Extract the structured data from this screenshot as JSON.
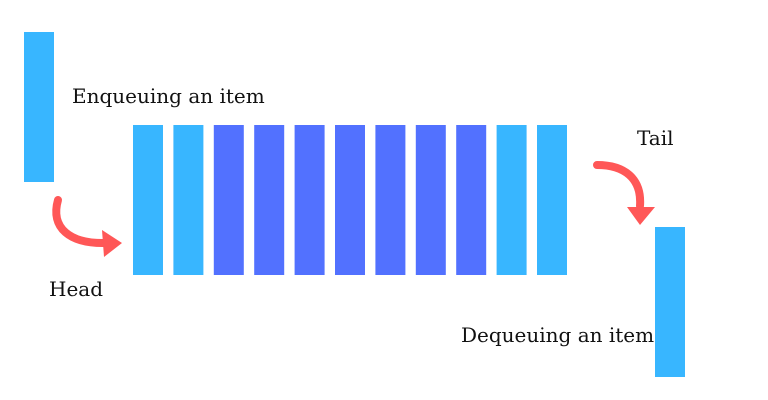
{
  "labels": {
    "enqueue": "Enqueuing an item",
    "head": "Head",
    "tail": "Tail",
    "dequeue": "Dequeuing an item"
  },
  "queue": {
    "cells": [
      "light",
      "light",
      "dark",
      "dark",
      "dark",
      "dark",
      "dark",
      "dark",
      "dark",
      "light",
      "light"
    ]
  },
  "colors": {
    "light": "#38b6ff",
    "dark": "#5271ff",
    "arrow": "#ff5757"
  },
  "icons": {
    "enqueue_arrow": "curved-arrow-icon",
    "dequeue_arrow": "curved-arrow-icon"
  }
}
